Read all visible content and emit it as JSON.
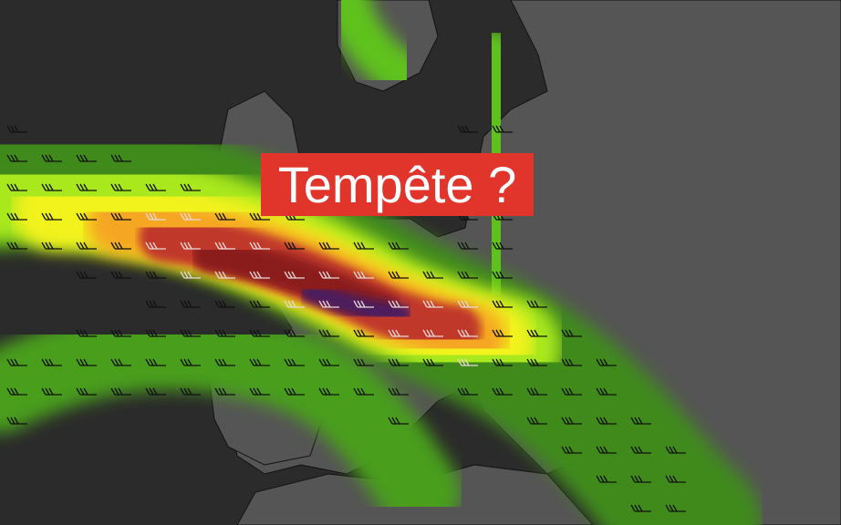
{
  "title": "Tempête ?",
  "colors": {
    "sea": "#2b2b2b",
    "land": "#555555",
    "label_bg": "#e1352b",
    "wind_scale": [
      "#3f8a1f",
      "#5fc21a",
      "#a8e81c",
      "#f2f21a",
      "#f5a623",
      "#c0392b",
      "#8b1a1a",
      "#4b1a5e"
    ]
  },
  "layers": [
    "wind-speed-shading",
    "wind-barbs",
    "country-borders"
  ]
}
